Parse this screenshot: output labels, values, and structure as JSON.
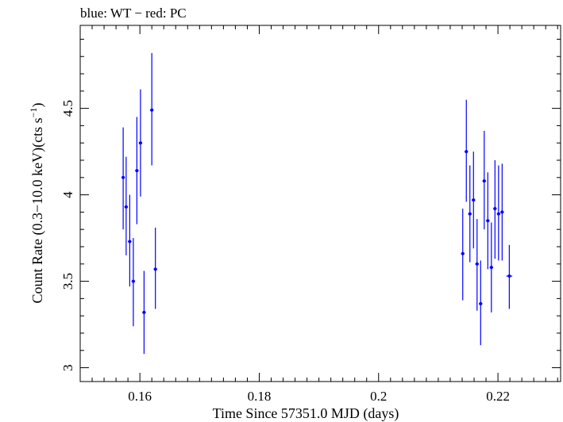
{
  "chart_data": {
    "type": "scatter",
    "title": "blue: WT − red: PC",
    "xlabel": "Time Since 57351.0 MJD (days)",
    "ylabel_main": "Count Rate (0.3−10.0 keV)(cts s",
    "ylabel_sup": "−1",
    "ylabel_close": ")",
    "xlim": [
      0.15,
      0.2305
    ],
    "ylim": [
      2.92,
      4.98
    ],
    "x_ticks": [
      0.16,
      0.18,
      0.2,
      0.22
    ],
    "x_tick_labels": [
      "0.16",
      "0.18",
      "0.2",
      "0.22"
    ],
    "y_ticks": [
      3,
      3.5,
      4,
      4.5
    ],
    "y_tick_labels": [
      "3",
      "3.5",
      "4",
      "4.5"
    ],
    "grid": false,
    "series": [
      {
        "color": "#0000ff",
        "points": [
          {
            "x": 0.1572,
            "y": 4.1,
            "xerr": 0.0003,
            "ylo": 3.8,
            "yhi": 4.39
          },
          {
            "x": 0.1577,
            "y": 3.93,
            "xerr": 0.0003,
            "ylo": 3.65,
            "yhi": 4.22
          },
          {
            "x": 0.1583,
            "y": 3.73,
            "xerr": 0.0003,
            "ylo": 3.47,
            "yhi": 4.0
          },
          {
            "x": 0.1589,
            "y": 3.5,
            "xerr": 0.0003,
            "ylo": 3.24,
            "yhi": 3.75
          },
          {
            "x": 0.1595,
            "y": 4.14,
            "xerr": 0.0003,
            "ylo": 3.83,
            "yhi": 4.45
          },
          {
            "x": 0.1601,
            "y": 4.3,
            "xerr": 0.0003,
            "ylo": 3.99,
            "yhi": 4.61
          },
          {
            "x": 0.1607,
            "y": 3.32,
            "xerr": 0.0003,
            "ylo": 3.08,
            "yhi": 3.56
          },
          {
            "x": 0.162,
            "y": 4.49,
            "xerr": 0.0003,
            "ylo": 4.17,
            "yhi": 4.82
          },
          {
            "x": 0.1626,
            "y": 3.57,
            "xerr": 0.0003,
            "ylo": 3.34,
            "yhi": 3.81
          },
          {
            "x": 0.2141,
            "y": 3.66,
            "xerr": 0.0003,
            "ylo": 3.39,
            "yhi": 3.92
          },
          {
            "x": 0.2147,
            "y": 4.25,
            "xerr": 0.0003,
            "ylo": 3.96,
            "yhi": 4.55
          },
          {
            "x": 0.2153,
            "y": 3.89,
            "xerr": 0.0003,
            "ylo": 3.61,
            "yhi": 4.17
          },
          {
            "x": 0.2159,
            "y": 3.97,
            "xerr": 0.0003,
            "ylo": 3.69,
            "yhi": 4.25
          },
          {
            "x": 0.2165,
            "y": 3.6,
            "xerr": 0.0003,
            "ylo": 3.33,
            "yhi": 3.86
          },
          {
            "x": 0.2171,
            "y": 3.37,
            "xerr": 0.0003,
            "ylo": 3.13,
            "yhi": 3.62
          },
          {
            "x": 0.2177,
            "y": 4.08,
            "xerr": 0.0003,
            "ylo": 3.8,
            "yhi": 4.37
          },
          {
            "x": 0.2183,
            "y": 3.85,
            "xerr": 0.0003,
            "ylo": 3.57,
            "yhi": 4.13
          },
          {
            "x": 0.2189,
            "y": 3.58,
            "xerr": 0.0003,
            "ylo": 3.32,
            "yhi": 3.84
          },
          {
            "x": 0.2195,
            "y": 3.92,
            "xerr": 0.0003,
            "ylo": 3.63,
            "yhi": 4.2
          },
          {
            "x": 0.2201,
            "y": 3.89,
            "xerr": 0.0003,
            "ylo": 3.62,
            "yhi": 4.17
          },
          {
            "x": 0.2207,
            "y": 3.9,
            "xerr": 0.0003,
            "ylo": 3.62,
            "yhi": 4.18
          },
          {
            "x": 0.2219,
            "y": 3.53,
            "xerr": 0.0005,
            "ylo": 3.34,
            "yhi": 3.71
          }
        ]
      }
    ]
  }
}
